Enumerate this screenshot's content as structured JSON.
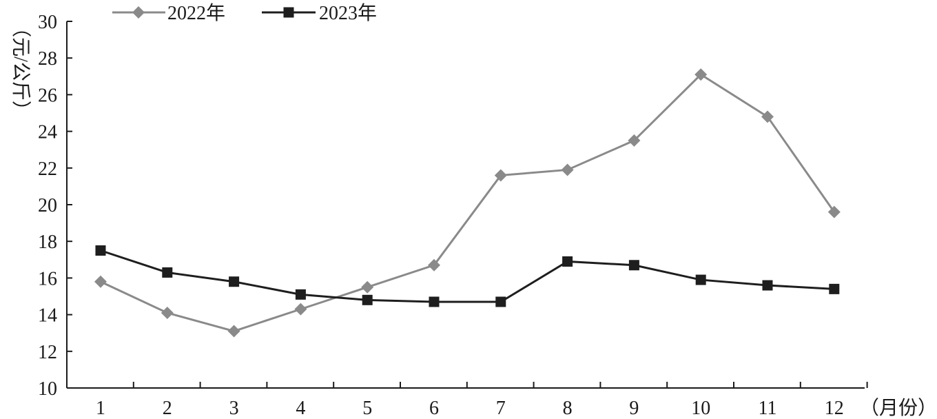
{
  "chart_data": {
    "type": "line",
    "title": "",
    "xlabel": "（月份）",
    "ylabel": "（元/公斤）",
    "x": [
      1,
      2,
      3,
      4,
      5,
      6,
      7,
      8,
      9,
      10,
      11,
      12
    ],
    "ylim": [
      10,
      30
    ],
    "yticks": [
      10,
      12,
      14,
      16,
      18,
      20,
      22,
      24,
      26,
      28,
      30
    ],
    "grid": false,
    "legend": "top-left",
    "series": [
      {
        "name": "2022年",
        "marker": "diamond",
        "color": "#8a8a8a",
        "values": [
          15.8,
          14.1,
          13.1,
          14.3,
          15.5,
          16.7,
          21.6,
          21.9,
          23.5,
          27.1,
          24.8,
          19.6
        ]
      },
      {
        "name": "2023年",
        "marker": "square",
        "color": "#1e1e1e",
        "values": [
          17.5,
          16.3,
          15.8,
          15.1,
          14.8,
          14.7,
          14.7,
          16.9,
          16.7,
          15.9,
          15.6,
          15.4
        ]
      }
    ]
  }
}
